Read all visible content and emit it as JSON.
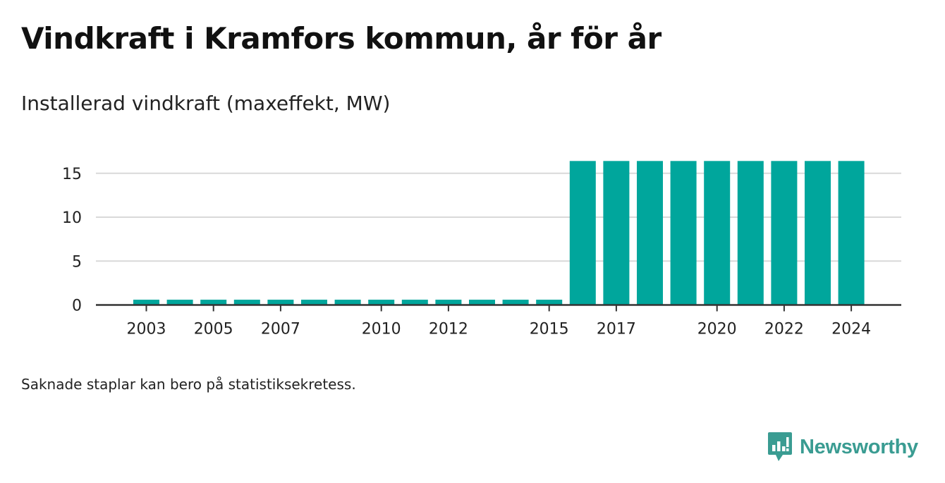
{
  "title": "Vindkraft i Kramfors kommun, år för år",
  "subtitle": "Installerad vindkraft (maxeffekt, MW)",
  "footnote": "Saknade staplar kan bero på statistiksekretess.",
  "brand": {
    "name": "Newsworthy",
    "icon": "newsworthy-logo-icon",
    "color": "#3a9c92"
  },
  "chart_data": {
    "type": "bar",
    "categories": [
      "2003",
      "2004",
      "2005",
      "2006",
      "2007",
      "2008",
      "2009",
      "2010",
      "2011",
      "2012",
      "2013",
      "2014",
      "2015",
      "2016",
      "2017",
      "2018",
      "2019",
      "2020",
      "2021",
      "2022",
      "2023",
      "2024"
    ],
    "values": [
      0.6,
      0.6,
      0.6,
      0.6,
      0.6,
      0.6,
      0.6,
      0.6,
      0.6,
      0.6,
      0.6,
      0.6,
      0.6,
      16.4,
      16.4,
      16.4,
      16.4,
      16.4,
      16.4,
      16.4,
      16.4,
      16.4
    ],
    "x_tick_labels": [
      "2003",
      "2005",
      "2007",
      "2010",
      "2012",
      "2015",
      "2017",
      "2020",
      "2022",
      "2024"
    ],
    "y_ticks": [
      0,
      5,
      10,
      15
    ],
    "ylim": [
      0,
      17
    ],
    "xlabel": "",
    "ylabel": "",
    "grid": true,
    "bar_color": "#00a69c",
    "grid_color": "#d9d9d9",
    "axis_color": "#333333"
  }
}
